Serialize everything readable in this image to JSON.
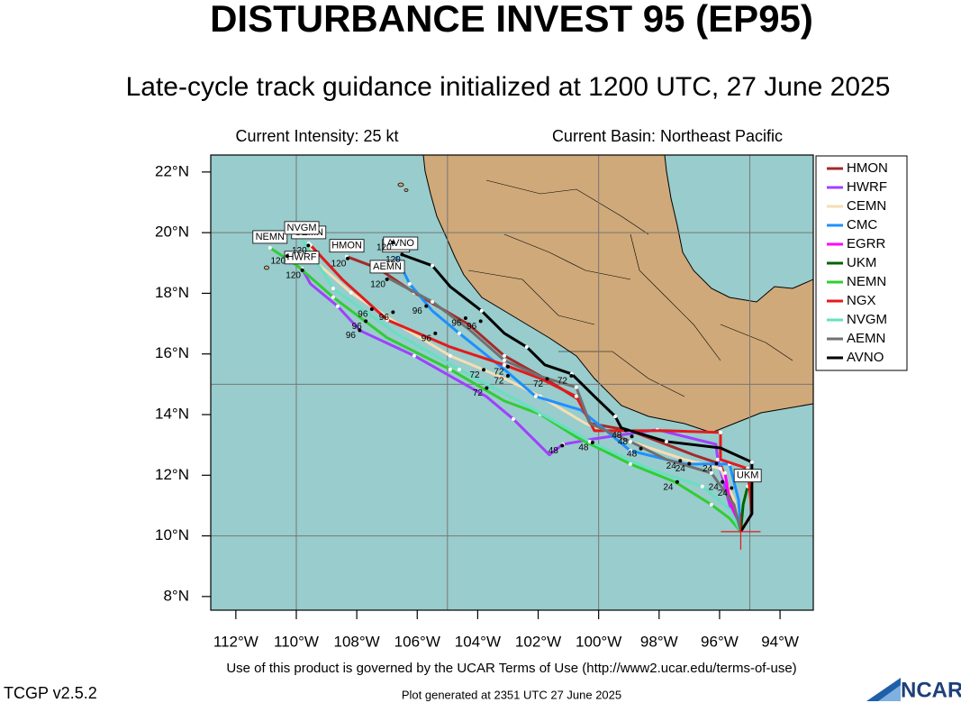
{
  "chart_data": {
    "type": "track_map",
    "title": "DISTURBANCE INVEST 95 (EP95)",
    "subtitle": "Late-cycle track guidance initialized at 1200 UTC, 27 June 2025",
    "info_left": "Current Intensity: 25 kt",
    "info_right": "Current Basin: Northeast Pacific",
    "footer": "Use of this product is governed by the UCAR Terms of Use (http://www2.ucar.edu/terms-of-use)",
    "version": "TCGP v2.5.2",
    "generated": "Plot generated at 2351 UTC   27 June 2025",
    "logo": "NCAR",
    "xlim": [
      -112.83,
      -92.9
    ],
    "ylim": [
      7.55,
      22.56
    ],
    "xticks": [
      {
        "value": -112,
        "label": "112°W"
      },
      {
        "value": -110,
        "label": "110°W"
      },
      {
        "value": -108,
        "label": "108°W"
      },
      {
        "value": -106,
        "label": "106°W"
      },
      {
        "value": -104,
        "label": "104°W"
      },
      {
        "value": -102,
        "label": "102°W"
      },
      {
        "value": -100,
        "label": "100°W"
      },
      {
        "value": -98,
        "label": "98°W"
      },
      {
        "value": -96,
        "label": "96°W"
      },
      {
        "value": -94,
        "label": "94°W"
      }
    ],
    "yticks": [
      {
        "value": 8,
        "label": "8°N"
      },
      {
        "value": 10,
        "label": "10°N"
      },
      {
        "value": 12,
        "label": "12°N"
      },
      {
        "value": 14,
        "label": "14°N"
      },
      {
        "value": 16,
        "label": "16°N"
      },
      {
        "value": 18,
        "label": "18°N"
      },
      {
        "value": 20,
        "label": "20°N"
      },
      {
        "value": 22,
        "label": "22°N"
      }
    ],
    "grid_lon": [
      -110,
      -105,
      -100,
      -95
    ],
    "grid_lat": [
      10,
      15,
      20
    ],
    "initial_position": {
      "lon": -95.3,
      "lat": 10.14
    },
    "legend": "upper right",
    "series": [
      {
        "name": "HMON",
        "color": "#a52a2a",
        "boxed": true,
        "lon": [
          -95.3,
          -95.52,
          -95.97,
          -96.86,
          -98.95,
          -100.29,
          -100.59,
          -101.78,
          -103.12,
          -104.31,
          -106.1,
          -107.29,
          -108.33
        ],
        "lat": [
          10.14,
          11.03,
          12.37,
          12.67,
          13.47,
          13.71,
          14.45,
          15.19,
          15.94,
          16.98,
          18.02,
          18.82,
          19.21
        ]
      },
      {
        "name": "HWRF",
        "color": "#a040ff",
        "boxed": true,
        "lon": [
          -95.3,
          -95.67,
          -96.06,
          -96.12,
          -98.06,
          -100.14,
          -101.18,
          -101.63,
          -102.82,
          -103.72,
          -106.1,
          -107.89,
          -108.63,
          -109.53,
          -109.82
        ],
        "lat": [
          10.14,
          11.03,
          12.52,
          13.02,
          13.5,
          13.2,
          13.02,
          12.67,
          13.85,
          14.6,
          15.94,
          16.77,
          17.57,
          18.31,
          18.82
        ]
      },
      {
        "name": "CEMN",
        "color": "#f5deb3",
        "boxed": true,
        "lon": [
          -95.3,
          -95.52,
          -95.97,
          -97.16,
          -98.95,
          -100.44,
          -101.93,
          -103.12,
          -104.91,
          -106.4,
          -108.19,
          -109.38,
          -109.59
        ],
        "lat": [
          10.14,
          11.18,
          12.22,
          12.52,
          13.11,
          13.71,
          14.6,
          15.19,
          15.94,
          16.83,
          18.02,
          19.06,
          19.65
        ]
      },
      {
        "name": "CMC",
        "color": "#1e90ff",
        "boxed": true,
        "lon": [
          -95.3,
          -95.37,
          -95.67,
          -97.16,
          -98.95,
          -100.59,
          -102.08,
          -103.12,
          -104.61,
          -105.5,
          -106.25,
          -106.7
        ],
        "lat": [
          10.14,
          11.18,
          12.37,
          12.37,
          12.81,
          14.15,
          14.6,
          15.49,
          16.68,
          17.42,
          18.31,
          19.21
        ]
      },
      {
        "name": "EGRR",
        "color": "#ff00ff",
        "boxed": false,
        "lon": [
          -95.3,
          -95.67,
          -95.82
        ],
        "lat": [
          10.14,
          11.18,
          12.07
        ]
      },
      {
        "name": "UKM",
        "color": "#006400",
        "boxed": true,
        "lon": [
          -95.3,
          -95.22,
          -95.07
        ],
        "lat": [
          10.14,
          11.03,
          11.63
        ]
      },
      {
        "name": "NEMN",
        "color": "#32cd32",
        "boxed": true,
        "lon": [
          -95.3,
          -95.67,
          -96.27,
          -97.46,
          -98.95,
          -100.74,
          -101.93,
          -103.12,
          -104.91,
          -106.99,
          -108.78,
          -109.97,
          -110.87
        ],
        "lat": [
          10.14,
          10.58,
          11.03,
          11.77,
          12.37,
          13.26,
          14.01,
          14.45,
          15.49,
          16.53,
          17.87,
          18.91,
          19.5
        ]
      },
      {
        "name": "NGX",
        "color": "#e31a1c",
        "boxed": false,
        "lon": [
          -95.3,
          -94.93,
          -95.07,
          -95.97,
          -95.97,
          -97.76,
          -98.95,
          -100.14,
          -100.74,
          -101.93,
          -103.12,
          -104.91,
          -106.99,
          -108.48,
          -109.53
        ],
        "lat": [
          10.14,
          10.73,
          12.22,
          12.52,
          13.41,
          13.47,
          13.47,
          13.47,
          14.6,
          15.19,
          15.64,
          16.23,
          17.12,
          18.46,
          19.59
        ]
      },
      {
        "name": "NVGM",
        "color": "#66e0c0",
        "boxed": true,
        "lon": [
          -95.3,
          -95.67,
          -96.57,
          -98.36,
          -100.29,
          -102.38,
          -104.61,
          -106.7,
          -108.78,
          -109.82
        ],
        "lat": [
          10.14,
          10.88,
          11.63,
          12.22,
          13.11,
          14.3,
          15.49,
          16.68,
          18.16,
          19.8
        ]
      },
      {
        "name": "AEMN",
        "color": "#707070",
        "boxed": true,
        "lon": [
          -95.3,
          -95.52,
          -96.27,
          -97.76,
          -98.95,
          -100.29,
          -100.74,
          -101.93,
          -103.12,
          -104.31,
          -105.5,
          -106.99
        ],
        "lat": [
          10.14,
          11.03,
          12.07,
          12.52,
          13.11,
          13.71,
          14.9,
          15.26,
          15.79,
          16.83,
          17.72,
          18.52
        ]
      },
      {
        "name": "AVNO",
        "color": "#000000",
        "boxed": true,
        "lon": [
          -95.3,
          -94.93,
          -94.93,
          -95.97,
          -97.76,
          -99.25,
          -99.45,
          -100.14,
          -100.89,
          -101.78,
          -102.38,
          -103.12,
          -103.87,
          -104.91,
          -105.5,
          -106.55
        ],
        "lat": [
          10.14,
          10.73,
          12.43,
          12.9,
          13.11,
          13.56,
          13.94,
          14.6,
          15.34,
          15.64,
          16.23,
          16.68,
          17.42,
          18.22,
          18.91,
          19.29
        ]
      }
    ],
    "annotations": [
      {
        "text": "120",
        "lon": -110.6,
        "lat": 19.05
      },
      {
        "text": "120",
        "lon": -110.1,
        "lat": 18.58
      },
      {
        "text": "120",
        "lon": -108.6,
        "lat": 18.97
      },
      {
        "text": "120",
        "lon": -107.3,
        "lat": 18.28
      },
      {
        "text": "120",
        "lon": -107.1,
        "lat": 19.5
      },
      {
        "text": "120",
        "lon": -106.8,
        "lat": 19.1
      },
      {
        "text": "120",
        "lon": -109.9,
        "lat": 19.4
      },
      {
        "text": "96",
        "lon": -107.8,
        "lat": 17.3
      },
      {
        "text": "96",
        "lon": -108.0,
        "lat": 16.9
      },
      {
        "text": "96",
        "lon": -108.2,
        "lat": 16.6
      },
      {
        "text": "96",
        "lon": -107.1,
        "lat": 17.2
      },
      {
        "text": "96",
        "lon": -106.0,
        "lat": 17.4
      },
      {
        "text": "96",
        "lon": -104.7,
        "lat": 17.0
      },
      {
        "text": "96",
        "lon": -104.2,
        "lat": 16.9
      },
      {
        "text": "96",
        "lon": -105.7,
        "lat": 16.5
      },
      {
        "text": "72",
        "lon": -104.1,
        "lat": 15.3
      },
      {
        "text": "72",
        "lon": -103.3,
        "lat": 15.4
      },
      {
        "text": "72",
        "lon": -103.3,
        "lat": 15.1
      },
      {
        "text": "72",
        "lon": -104.0,
        "lat": 14.7
      },
      {
        "text": "72",
        "lon": -102.0,
        "lat": 15.0
      },
      {
        "text": "72",
        "lon": -101.2,
        "lat": 15.1
      },
      {
        "text": "48",
        "lon": -101.5,
        "lat": 12.8
      },
      {
        "text": "48",
        "lon": -100.5,
        "lat": 12.9
      },
      {
        "text": "48",
        "lon": -99.4,
        "lat": 13.3
      },
      {
        "text": "48",
        "lon": -99.2,
        "lat": 13.1
      },
      {
        "text": "48",
        "lon": -98.9,
        "lat": 12.7
      },
      {
        "text": "24",
        "lon": -97.7,
        "lat": 11.6
      },
      {
        "text": "24",
        "lon": -97.6,
        "lat": 12.3
      },
      {
        "text": "24",
        "lon": -97.3,
        "lat": 12.2
      },
      {
        "text": "24",
        "lon": -96.4,
        "lat": 12.2
      },
      {
        "text": "24",
        "lon": -96.2,
        "lat": 11.6
      },
      {
        "text": "24",
        "lon": -95.9,
        "lat": 11.4
      }
    ]
  }
}
